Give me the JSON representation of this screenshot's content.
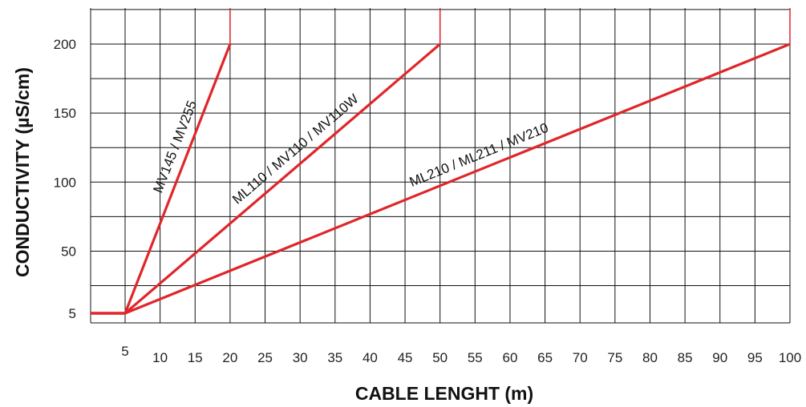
{
  "chart_data": {
    "type": "line",
    "xlabel": "CABLE LENGHT (m)",
    "ylabel": "CONDUCTIVITY  (µS/cm)",
    "xlim": [
      0,
      100
    ],
    "ylim": [
      0,
      225
    ],
    "x_ticks": [
      "5",
      "10",
      "15",
      "20",
      "25",
      "30",
      "35",
      "40",
      "45",
      "50",
      "55",
      "60",
      "65",
      "70",
      "75",
      "80",
      "85",
      "90",
      "95",
      "100"
    ],
    "y_ticks": [
      "5",
      "50",
      "100",
      "150",
      "200"
    ],
    "grid": true,
    "series": [
      {
        "name": "MV145 / MV255",
        "x": [
          0,
          5,
          20
        ],
        "y": [
          5,
          5,
          200
        ]
      },
      {
        "name": "ML110 / MV110 / MV110W",
        "x": [
          0,
          5,
          50
        ],
        "y": [
          5,
          5,
          200
        ]
      },
      {
        "name": "ML210 / ML211 /  MV210",
        "x": [
          0,
          5,
          100
        ],
        "y": [
          5,
          5,
          200
        ]
      }
    ]
  },
  "colors": {
    "series": "#e0262a",
    "grid": "#111111"
  }
}
